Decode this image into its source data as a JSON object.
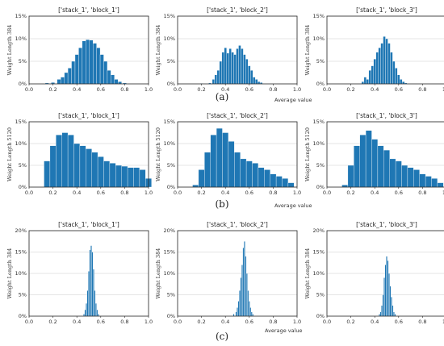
{
  "figure": {
    "captions": [
      "(a)",
      "(b)",
      "(c)"
    ],
    "x_axis_caption": "Average value"
  },
  "chart_data": [
    {
      "type": "bar",
      "row": "a",
      "title": "['stack_1', 'block_1']",
      "ylabel": "Weight Length 384",
      "xlabel": "",
      "xlim": [
        0.0,
        1.0
      ],
      "ylim": [
        0,
        15
      ],
      "yticks": [
        "0%",
        "5%",
        "10%",
        "15%"
      ],
      "xticks": [
        "0.0",
        "0.2",
        "0.4",
        "0.6",
        "0.8",
        "1.0"
      ],
      "grid": true,
      "bar_color": "#1f77b4",
      "bins": [
        [
          0.15,
          0.2
        ],
        [
          0.2,
          0.3
        ],
        [
          0.25,
          1.0
        ],
        [
          0.28,
          1.5
        ],
        [
          0.31,
          2.5
        ],
        [
          0.34,
          3.5
        ],
        [
          0.37,
          5.0
        ],
        [
          0.4,
          6.5
        ],
        [
          0.43,
          8.0
        ],
        [
          0.46,
          9.5
        ],
        [
          0.49,
          9.8
        ],
        [
          0.52,
          9.7
        ],
        [
          0.55,
          9.0
        ],
        [
          0.58,
          8.0
        ],
        [
          0.61,
          6.5
        ],
        [
          0.64,
          5.0
        ],
        [
          0.67,
          3.0
        ],
        [
          0.7,
          2.0
        ],
        [
          0.73,
          1.0
        ],
        [
          0.76,
          0.5
        ],
        [
          0.8,
          0.2
        ]
      ],
      "bin_width": 0.03
    },
    {
      "type": "bar",
      "row": "a",
      "title": "['stack_1', 'block_2']",
      "ylabel": "Weight Length 384",
      "xlabel": "",
      "xlim": [
        0.0,
        1.0
      ],
      "ylim": [
        0,
        15
      ],
      "yticks": [
        "0%",
        "5%",
        "10%",
        "15%"
      ],
      "xticks": [
        "0.0",
        "0.2",
        "0.4",
        "0.6",
        "0.8",
        "1.0"
      ],
      "grid": true,
      "bar_color": "#1f77b4",
      "bins": [
        [
          0.2,
          0.1
        ],
        [
          0.27,
          0.2
        ],
        [
          0.3,
          1.0
        ],
        [
          0.32,
          2.0
        ],
        [
          0.34,
          3.0
        ],
        [
          0.36,
          5.0
        ],
        [
          0.38,
          7.0
        ],
        [
          0.4,
          8.0
        ],
        [
          0.42,
          6.8
        ],
        [
          0.44,
          7.8
        ],
        [
          0.46,
          7.0
        ],
        [
          0.48,
          6.5
        ],
        [
          0.5,
          7.8
        ],
        [
          0.52,
          8.5
        ],
        [
          0.54,
          7.8
        ],
        [
          0.56,
          6.5
        ],
        [
          0.58,
          5.5
        ],
        [
          0.6,
          4.0
        ],
        [
          0.62,
          3.0
        ],
        [
          0.64,
          1.5
        ],
        [
          0.66,
          1.0
        ],
        [
          0.68,
          0.5
        ],
        [
          0.7,
          0.3
        ]
      ],
      "bin_width": 0.02
    },
    {
      "type": "bar",
      "row": "a",
      "title": "['stack_1', 'block_3']",
      "ylabel": "Weight Length 384",
      "xlabel": "",
      "xlim": [
        0.0,
        1.0
      ],
      "ylim": [
        0,
        15
      ],
      "yticks": [
        "0%",
        "5%",
        "10%",
        "15%"
      ],
      "xticks": [
        "0.0",
        "0.2",
        "0.4",
        "0.6",
        "0.8",
        "1.0"
      ],
      "grid": true,
      "bar_color": "#1f77b4",
      "bins": [
        [
          0.3,
          0.5
        ],
        [
          0.32,
          1.5
        ],
        [
          0.34,
          1.0
        ],
        [
          0.36,
          3.0
        ],
        [
          0.38,
          4.0
        ],
        [
          0.4,
          5.5
        ],
        [
          0.42,
          7.0
        ],
        [
          0.44,
          8.0
        ],
        [
          0.46,
          9.0
        ],
        [
          0.48,
          10.5
        ],
        [
          0.5,
          10.0
        ],
        [
          0.52,
          9.0
        ],
        [
          0.54,
          7.0
        ],
        [
          0.56,
          5.0
        ],
        [
          0.58,
          3.5
        ],
        [
          0.6,
          2.0
        ],
        [
          0.62,
          1.0
        ],
        [
          0.64,
          0.5
        ],
        [
          0.66,
          0.2
        ]
      ],
      "bin_width": 0.02
    },
    {
      "type": "bar",
      "row": "b",
      "title": "['stack_1', 'block_1']",
      "ylabel": "Weight Length 5120",
      "xlabel": "",
      "xlim": [
        0.0,
        1.0
      ],
      "ylim": [
        0,
        15
      ],
      "yticks": [
        "0%",
        "5%",
        "10%",
        "15%"
      ],
      "xticks": [
        "0.0",
        "0.2",
        "0.4",
        "0.6",
        "0.8",
        "1.0"
      ],
      "grid": true,
      "bar_color": "#1f77b4",
      "bins": [
        [
          0.15,
          6.0
        ],
        [
          0.2,
          9.5
        ],
        [
          0.25,
          12.0
        ],
        [
          0.3,
          12.5
        ],
        [
          0.35,
          12.0
        ],
        [
          0.4,
          10.0
        ],
        [
          0.45,
          9.5
        ],
        [
          0.5,
          8.8
        ],
        [
          0.55,
          8.0
        ],
        [
          0.6,
          7.0
        ],
        [
          0.65,
          6.0
        ],
        [
          0.7,
          5.5
        ],
        [
          0.75,
          5.0
        ],
        [
          0.8,
          4.8
        ],
        [
          0.85,
          4.5
        ],
        [
          0.9,
          4.5
        ],
        [
          0.95,
          4.0
        ],
        [
          1.0,
          2.0
        ]
      ],
      "bin_width": 0.05
    },
    {
      "type": "bar",
      "row": "b",
      "title": "['stack_1', 'block_2']",
      "ylabel": "Weight Length 5120",
      "xlabel": "",
      "xlim": [
        0.0,
        1.0
      ],
      "ylim": [
        0,
        15
      ],
      "yticks": [
        "0%",
        "5%",
        "10%",
        "15%"
      ],
      "xticks": [
        "0.0",
        "0.2",
        "0.4",
        "0.6",
        "0.8",
        "1.0"
      ],
      "grid": true,
      "bar_color": "#1f77b4",
      "bins": [
        [
          0.15,
          0.5
        ],
        [
          0.2,
          4.0
        ],
        [
          0.25,
          8.0
        ],
        [
          0.3,
          12.0
        ],
        [
          0.35,
          13.5
        ],
        [
          0.4,
          12.5
        ],
        [
          0.45,
          10.5
        ],
        [
          0.5,
          8.0
        ],
        [
          0.55,
          6.5
        ],
        [
          0.6,
          6.0
        ],
        [
          0.65,
          5.5
        ],
        [
          0.7,
          4.5
        ],
        [
          0.75,
          4.0
        ],
        [
          0.8,
          3.0
        ],
        [
          0.85,
          2.5
        ],
        [
          0.9,
          2.0
        ],
        [
          0.95,
          1.0
        ]
      ],
      "bin_width": 0.05
    },
    {
      "type": "bar",
      "row": "b",
      "title": "['stack_1', 'block_3']",
      "ylabel": "Weight Length 5120",
      "xlabel": "",
      "xlim": [
        0.0,
        1.0
      ],
      "ylim": [
        0,
        15
      ],
      "yticks": [
        "0%",
        "5%",
        "10%",
        "15%"
      ],
      "xticks": [
        "0.0",
        "0.2",
        "0.4",
        "0.6",
        "0.8",
        "1.0"
      ],
      "grid": true,
      "bar_color": "#1f77b4",
      "bins": [
        [
          0.15,
          0.5
        ],
        [
          0.2,
          5.0
        ],
        [
          0.25,
          9.5
        ],
        [
          0.3,
          12.0
        ],
        [
          0.35,
          13.0
        ],
        [
          0.4,
          11.0
        ],
        [
          0.45,
          9.5
        ],
        [
          0.5,
          8.5
        ],
        [
          0.55,
          6.5
        ],
        [
          0.6,
          6.0
        ],
        [
          0.65,
          5.0
        ],
        [
          0.7,
          4.5
        ],
        [
          0.75,
          4.0
        ],
        [
          0.8,
          3.0
        ],
        [
          0.85,
          2.5
        ],
        [
          0.9,
          2.0
        ],
        [
          0.95,
          1.0
        ]
      ],
      "bin_width": 0.05
    },
    {
      "type": "bar",
      "row": "c",
      "title": "['stack_1', 'block_1']",
      "ylabel": "Weight Length 384",
      "xlabel": "",
      "xlim": [
        0.0,
        1.0
      ],
      "ylim": [
        0,
        20
      ],
      "yticks": [
        "0%",
        "5%",
        "10%",
        "15%",
        "20%"
      ],
      "xticks": [
        "0.0",
        "0.2",
        "0.4",
        "0.6",
        "0.8",
        "1.0"
      ],
      "grid": true,
      "bar_color": "#1f77b4",
      "bins": [
        [
          0.46,
          0.5
        ],
        [
          0.47,
          1.5
        ],
        [
          0.48,
          3.0
        ],
        [
          0.49,
          6.0
        ],
        [
          0.5,
          10.5
        ],
        [
          0.51,
          15.5
        ],
        [
          0.52,
          16.5
        ],
        [
          0.53,
          15.0
        ],
        [
          0.54,
          11.0
        ],
        [
          0.55,
          6.0
        ],
        [
          0.56,
          3.0
        ],
        [
          0.57,
          1.5
        ],
        [
          0.58,
          0.5
        ]
      ],
      "bin_width": 0.01
    },
    {
      "type": "bar",
      "row": "c",
      "title": "['stack_1', 'block_2']",
      "ylabel": "Weight Length 384",
      "xlabel": "",
      "xlim": [
        0.0,
        1.0
      ],
      "ylim": [
        0,
        20
      ],
      "yticks": [
        "0%",
        "5%",
        "10%",
        "15%",
        "20%"
      ],
      "xticks": [
        "0.0",
        "0.2",
        "0.4",
        "0.6",
        "0.8",
        "1.0"
      ],
      "grid": true,
      "bar_color": "#1f77b4",
      "bins": [
        [
          0.47,
          0.5
        ],
        [
          0.49,
          1.0
        ],
        [
          0.5,
          2.0
        ],
        [
          0.51,
          3.5
        ],
        [
          0.52,
          6.0
        ],
        [
          0.53,
          9.0
        ],
        [
          0.54,
          12.0
        ],
        [
          0.55,
          16.0
        ],
        [
          0.56,
          17.5
        ],
        [
          0.57,
          14.0
        ],
        [
          0.58,
          10.0
        ],
        [
          0.59,
          6.0
        ],
        [
          0.6,
          3.5
        ],
        [
          0.61,
          2.0
        ],
        [
          0.62,
          1.0
        ],
        [
          0.63,
          0.5
        ]
      ],
      "bin_width": 0.01
    },
    {
      "type": "bar",
      "row": "c",
      "title": "['stack_1', 'block_3']",
      "ylabel": "Weight Length 384",
      "xlabel": "",
      "xlim": [
        0.0,
        1.0
      ],
      "ylim": [
        0,
        20
      ],
      "yticks": [
        "0%",
        "5%",
        "10%",
        "15%",
        "20%"
      ],
      "xticks": [
        "0.0",
        "0.2",
        "0.4",
        "0.6",
        "0.8",
        "1.0"
      ],
      "grid": true,
      "bar_color": "#1f77b4",
      "bins": [
        [
          0.44,
          0.5
        ],
        [
          0.45,
          1.0
        ],
        [
          0.46,
          2.5
        ],
        [
          0.47,
          5.0
        ],
        [
          0.48,
          9.0
        ],
        [
          0.49,
          12.0
        ],
        [
          0.5,
          14.0
        ],
        [
          0.51,
          13.0
        ],
        [
          0.52,
          10.0
        ],
        [
          0.53,
          7.0
        ],
        [
          0.54,
          4.5
        ],
        [
          0.55,
          2.5
        ],
        [
          0.56,
          1.0
        ],
        [
          0.57,
          0.5
        ]
      ],
      "bin_width": 0.01
    }
  ]
}
